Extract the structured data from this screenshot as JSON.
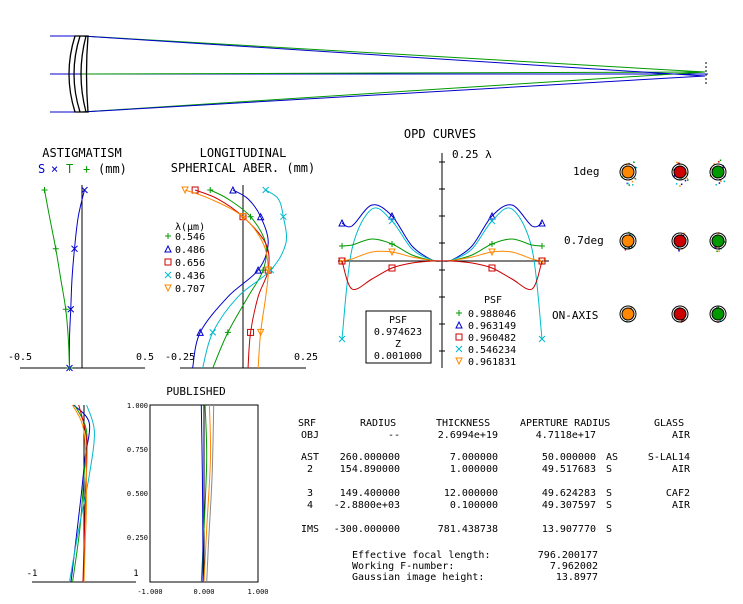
{
  "astigmatism": {
    "title": "ASTIGMATISM",
    "legend": {
      "s": "S",
      "s_mark": "×",
      "t": "T",
      "t_mark": "+",
      "units": "(mm)"
    },
    "axis": {
      "left": "-0.5",
      "right": "0.5"
    },
    "xlim": [
      -0.5,
      0.5
    ],
    "s_curve": {
      "x": [
        0.02,
        -0.03,
        -0.06,
        -0.08,
        -0.09,
        -0.1,
        -0.1
      ],
      "y": [
        1.0,
        0.85,
        0.67,
        0.5,
        0.33,
        0.17,
        0.0
      ]
    },
    "t_curve": {
      "x": [
        -0.3,
        -0.26,
        -0.21,
        -0.17,
        -0.13,
        -0.11,
        -0.1
      ],
      "y": [
        1.0,
        0.85,
        0.67,
        0.5,
        0.33,
        0.17,
        0.0
      ]
    },
    "colors": {
      "s": "#0000cc",
      "t": "#009900"
    }
  },
  "spherical": {
    "title_line1": "LONGITUDINAL",
    "title_line2": "SPHERICAL ABER. (mm)",
    "axis": {
      "left": "-0.25",
      "right": "0.25"
    },
    "xlim": [
      -0.25,
      0.25
    ],
    "wavelength_header": "λ(μm)",
    "wavelengths": [
      {
        "label": "0.546",
        "marker": "+",
        "color": "#009900",
        "x": [
          -0.13,
          -0.06,
          0.03,
          0.09,
          0.08,
          0.02,
          -0.06,
          -0.12
        ],
        "y": [
          1.0,
          0.95,
          0.85,
          0.7,
          0.55,
          0.4,
          0.2,
          0.0
        ]
      },
      {
        "label": "0.486",
        "marker": "triangle",
        "color": "#0000cc",
        "x": [
          -0.04,
          0.02,
          0.07,
          0.1,
          0.06,
          -0.06,
          -0.17,
          -0.2
        ],
        "y": [
          1.0,
          0.95,
          0.85,
          0.7,
          0.55,
          0.4,
          0.2,
          0.0
        ]
      },
      {
        "label": "0.656",
        "marker": "square",
        "color": "#cc0000",
        "x": [
          -0.19,
          -0.1,
          0.0,
          0.09,
          0.1,
          0.06,
          0.03,
          0.02
        ],
        "y": [
          1.0,
          0.95,
          0.85,
          0.7,
          0.55,
          0.4,
          0.2,
          0.0
        ]
      },
      {
        "label": "0.436",
        "marker": "×",
        "color": "#00bbcc",
        "x": [
          0.09,
          0.14,
          0.16,
          0.17,
          0.11,
          -0.02,
          -0.12,
          -0.16
        ],
        "y": [
          1.0,
          0.95,
          0.85,
          0.7,
          0.55,
          0.4,
          0.2,
          0.0
        ]
      },
      {
        "label": "0.707",
        "marker": "nabla",
        "color": "#ff8800",
        "x": [
          -0.23,
          -0.13,
          0.0,
          0.08,
          0.1,
          0.09,
          0.07,
          0.06
        ],
        "y": [
          1.0,
          0.95,
          0.85,
          0.7,
          0.55,
          0.4,
          0.2,
          0.0
        ]
      }
    ]
  },
  "opd": {
    "title": "OPD CURVES",
    "scale_label": "0.25 λ",
    "psf_box": {
      "label": "PSF",
      "value": "0.974623",
      "z_label": "Z",
      "z_value": "0.001000"
    },
    "psf_header": "PSF",
    "psf_values": [
      {
        "value": "0.988046",
        "marker": "+",
        "color": "#009900"
      },
      {
        "value": "0.963149",
        "marker": "triangle",
        "color": "#0000cc"
      },
      {
        "value": "0.960482",
        "marker": "square",
        "color": "#cc0000"
      },
      {
        "value": "0.546234",
        "marker": "×",
        "color": "#00bbcc"
      },
      {
        "value": "0.961831",
        "marker": "nabla",
        "color": "#ff8800"
      }
    ],
    "curves": [
      {
        "color": "#0000cc",
        "x": [
          -1,
          -0.9,
          -0.7,
          -0.5,
          -0.3,
          -0.1,
          0
        ],
        "y": [
          0.38,
          0.35,
          0.56,
          0.45,
          0.15,
          0.01,
          0
        ]
      },
      {
        "color": "#00bbcc",
        "x": [
          -1,
          -0.9,
          -0.7,
          -0.5,
          -0.3,
          -0.1,
          0
        ],
        "y": [
          -0.78,
          0.12,
          0.52,
          0.4,
          0.12,
          0.01,
          0
        ]
      },
      {
        "color": "#009900",
        "x": [
          -1,
          -0.9,
          -0.7,
          -0.5,
          -0.3,
          -0.1,
          0
        ],
        "y": [
          0.15,
          0.16,
          0.22,
          0.17,
          0.06,
          0.005,
          0
        ]
      },
      {
        "color": "#ff8800",
        "x": [
          -1,
          -0.9,
          -0.7,
          -0.5,
          -0.3,
          -0.1,
          0
        ],
        "y": [
          0.0,
          0.02,
          0.09,
          0.09,
          0.04,
          0.005,
          0
        ]
      },
      {
        "color": "#cc0000",
        "x": [
          -1,
          -0.9,
          -0.7,
          -0.5,
          -0.3,
          -0.1,
          0
        ],
        "y": [
          0.0,
          -0.28,
          -0.18,
          -0.07,
          -0.02,
          0.0,
          0
        ]
      }
    ]
  },
  "spots": {
    "rows": [
      {
        "label": "1deg"
      },
      {
        "label": "0.7deg"
      },
      {
        "label": "ON-AXIS"
      }
    ]
  },
  "published": {
    "title": "PUBLISHED",
    "left_axis": {
      "left": "-1",
      "right": "1"
    },
    "right_axis": {
      "ticks": [
        "-1.000",
        "0.000",
        "1.000"
      ]
    },
    "y_ticks": [
      "1.000",
      "0.750",
      "0.500",
      "0.250"
    ]
  },
  "lens_table": {
    "headers": {
      "srf": "SRF",
      "radius": "RADIUS",
      "thickness": "THICKNESS",
      "aperture": "APERTURE RADIUS",
      "glass": "GLASS"
    },
    "rows": [
      {
        "srf": "OBJ",
        "radius": "--",
        "thickness": "2.6994e+19",
        "aperture": "4.7118e+17",
        "flag": "",
        "glass": "AIR"
      },
      {
        "srf": "AST",
        "radius": "260.000000",
        "thickness": "7.000000",
        "aperture": "50.000000",
        "flag": "AS",
        "glass": "S-LAL14"
      },
      {
        "srf": "2",
        "radius": "154.890000",
        "thickness": "1.000000",
        "aperture": "49.517683",
        "flag": "S",
        "glass": "AIR"
      },
      {
        "srf": "3",
        "radius": "149.400000",
        "thickness": "12.000000",
        "aperture": "49.624283",
        "flag": "S",
        "glass": "CAF2"
      },
      {
        "srf": "4",
        "radius": "-2.8800e+03",
        "thickness": "0.100000",
        "aperture": "49.307597",
        "flag": "S",
        "glass": "AIR"
      },
      {
        "srf": "IMS",
        "radius": "-300.000000",
        "thickness": "781.438738",
        "aperture": "13.907770",
        "flag": "S",
        "glass": ""
      }
    ],
    "summary": [
      {
        "label": "Effective focal length:",
        "value": "796.200177"
      },
      {
        "label": "Working F-number:",
        "value": "7.962002"
      },
      {
        "label": "Gaussian image height:",
        "value": "13.8977"
      }
    ]
  }
}
